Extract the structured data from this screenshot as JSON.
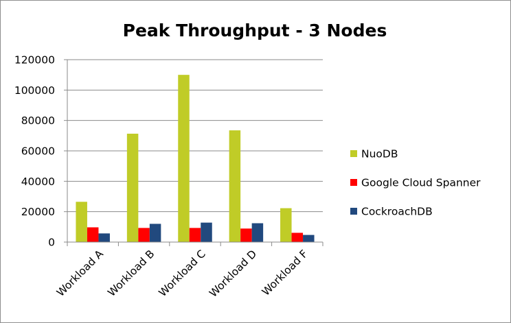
{
  "chart_data": {
    "type": "bar",
    "title": "Peak Throughput - 3 Nodes",
    "categories": [
      "Workload A",
      "Workload B",
      "Workload C",
      "Workload D",
      "Workload F"
    ],
    "series": [
      {
        "name": "NuoDB",
        "color": "#c0cc27",
        "values": [
          26500,
          71300,
          110000,
          73500,
          22300
        ]
      },
      {
        "name": "Google Cloud Spanner",
        "color": "#ff0000",
        "values": [
          9700,
          9300,
          9300,
          8900,
          6100
        ]
      },
      {
        "name": "CockroachDB",
        "color": "#21497e",
        "values": [
          5700,
          12000,
          12800,
          12400,
          4700
        ]
      }
    ],
    "ylim": [
      0,
      120000
    ],
    "yticks": [
      0,
      20000,
      40000,
      60000,
      80000,
      100000,
      120000
    ],
    "ytick_labels": [
      "0",
      "20000",
      "40000",
      "60000",
      "80000",
      "100000",
      "120000"
    ],
    "grid": true,
    "legend_position": "right",
    "gridline_color": "#8a8a8a",
    "axis_color": "#8a8a8a"
  }
}
